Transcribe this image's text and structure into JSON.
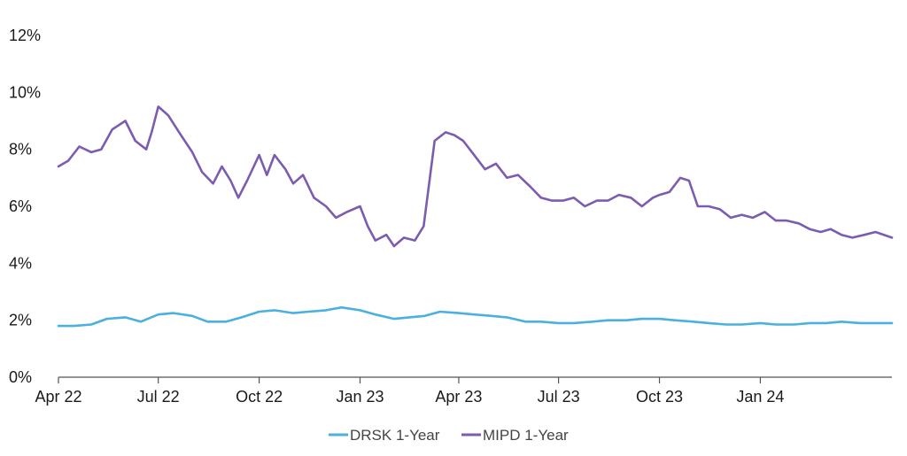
{
  "chart_data": {
    "type": "line",
    "title": "",
    "xlabel": "",
    "ylabel": "",
    "ylim": [
      0,
      12
    ],
    "y_ticks": [
      0,
      2,
      4,
      6,
      8,
      10,
      12
    ],
    "y_tick_labels": [
      "0%",
      "2%",
      "4%",
      "6%",
      "8%",
      "10%",
      "12%"
    ],
    "x_ticks": [
      "2022-04-01",
      "2022-07-01",
      "2022-10-01",
      "2023-01-01",
      "2023-04-01",
      "2023-07-01",
      "2023-10-01",
      "2024-01-01"
    ],
    "x_tick_labels": [
      "Apr 22",
      "Jul 22",
      "Oct 22",
      "Jan 23",
      "Apr 23",
      "Jul 23",
      "Oct 23",
      "Jan 24"
    ],
    "x_range": [
      "2022-04-01",
      "2024-04-30"
    ],
    "grid": false,
    "legend_position": "bottom-center",
    "series": [
      {
        "name": "DRSK 1-Year",
        "color": "#4ab0de",
        "points": [
          [
            "2022-04-01",
            1.8
          ],
          [
            "2022-04-15",
            1.8
          ],
          [
            "2022-05-01",
            1.85
          ],
          [
            "2022-05-15",
            2.05
          ],
          [
            "2022-06-01",
            2.1
          ],
          [
            "2022-06-15",
            1.95
          ],
          [
            "2022-07-01",
            2.2
          ],
          [
            "2022-07-15",
            2.25
          ],
          [
            "2022-08-01",
            2.15
          ],
          [
            "2022-08-15",
            1.95
          ],
          [
            "2022-09-01",
            1.95
          ],
          [
            "2022-09-15",
            2.1
          ],
          [
            "2022-10-01",
            2.3
          ],
          [
            "2022-10-15",
            2.35
          ],
          [
            "2022-11-01",
            2.25
          ],
          [
            "2022-11-15",
            2.3
          ],
          [
            "2022-12-01",
            2.35
          ],
          [
            "2022-12-15",
            2.45
          ],
          [
            "2023-01-01",
            2.35
          ],
          [
            "2023-01-15",
            2.2
          ],
          [
            "2023-02-01",
            2.05
          ],
          [
            "2023-02-15",
            2.1
          ],
          [
            "2023-03-01",
            2.15
          ],
          [
            "2023-03-15",
            2.3
          ],
          [
            "2023-04-01",
            2.25
          ],
          [
            "2023-04-15",
            2.2
          ],
          [
            "2023-05-01",
            2.15
          ],
          [
            "2023-05-15",
            2.1
          ],
          [
            "2023-06-01",
            1.95
          ],
          [
            "2023-06-15",
            1.95
          ],
          [
            "2023-07-01",
            1.9
          ],
          [
            "2023-07-15",
            1.9
          ],
          [
            "2023-08-01",
            1.95
          ],
          [
            "2023-08-15",
            2.0
          ],
          [
            "2023-09-01",
            2.0
          ],
          [
            "2023-09-15",
            2.05
          ],
          [
            "2023-10-01",
            2.05
          ],
          [
            "2023-10-15",
            2.0
          ],
          [
            "2023-11-01",
            1.95
          ],
          [
            "2023-11-15",
            1.9
          ],
          [
            "2023-12-01",
            1.85
          ],
          [
            "2023-12-15",
            1.85
          ],
          [
            "2024-01-01",
            1.9
          ],
          [
            "2024-01-15",
            1.85
          ],
          [
            "2024-02-01",
            1.85
          ],
          [
            "2024-02-15",
            1.9
          ],
          [
            "2024-03-01",
            1.9
          ],
          [
            "2024-03-15",
            1.95
          ],
          [
            "2024-04-01",
            1.9
          ],
          [
            "2024-04-30",
            1.9
          ]
        ]
      },
      {
        "name": "MIPD 1-Year",
        "color": "#7c5cb0",
        "points": [
          [
            "2022-04-01",
            7.4
          ],
          [
            "2022-04-10",
            7.6
          ],
          [
            "2022-04-20",
            8.1
          ],
          [
            "2022-05-01",
            7.9
          ],
          [
            "2022-05-10",
            8.0
          ],
          [
            "2022-05-20",
            8.7
          ],
          [
            "2022-06-01",
            9.0
          ],
          [
            "2022-06-10",
            8.3
          ],
          [
            "2022-06-20",
            8.0
          ],
          [
            "2022-06-25",
            8.6
          ],
          [
            "2022-07-01",
            9.5
          ],
          [
            "2022-07-10",
            9.2
          ],
          [
            "2022-07-20",
            8.6
          ],
          [
            "2022-08-01",
            7.9
          ],
          [
            "2022-08-10",
            7.2
          ],
          [
            "2022-08-20",
            6.8
          ],
          [
            "2022-08-28",
            7.4
          ],
          [
            "2022-09-05",
            6.9
          ],
          [
            "2022-09-12",
            6.3
          ],
          [
            "2022-09-20",
            6.9
          ],
          [
            "2022-10-01",
            7.8
          ],
          [
            "2022-10-08",
            7.1
          ],
          [
            "2022-10-15",
            7.8
          ],
          [
            "2022-10-25",
            7.3
          ],
          [
            "2022-11-01",
            6.8
          ],
          [
            "2022-11-10",
            7.1
          ],
          [
            "2022-11-20",
            6.3
          ],
          [
            "2022-12-01",
            6.0
          ],
          [
            "2022-12-10",
            5.6
          ],
          [
            "2022-12-20",
            5.8
          ],
          [
            "2023-01-01",
            6.0
          ],
          [
            "2023-01-08",
            5.3
          ],
          [
            "2023-01-15",
            4.8
          ],
          [
            "2023-01-25",
            5.0
          ],
          [
            "2023-02-01",
            4.6
          ],
          [
            "2023-02-10",
            4.9
          ],
          [
            "2023-02-20",
            4.8
          ],
          [
            "2023-02-28",
            5.3
          ],
          [
            "2023-03-10",
            8.3
          ],
          [
            "2023-03-20",
            8.6
          ],
          [
            "2023-03-28",
            8.5
          ],
          [
            "2023-04-05",
            8.3
          ],
          [
            "2023-04-15",
            7.8
          ],
          [
            "2023-04-25",
            7.3
          ],
          [
            "2023-05-05",
            7.5
          ],
          [
            "2023-05-15",
            7.0
          ],
          [
            "2023-05-25",
            7.1
          ],
          [
            "2023-06-05",
            6.7
          ],
          [
            "2023-06-15",
            6.3
          ],
          [
            "2023-06-25",
            6.2
          ],
          [
            "2023-07-05",
            6.2
          ],
          [
            "2023-07-15",
            6.3
          ],
          [
            "2023-07-25",
            6.0
          ],
          [
            "2023-08-05",
            6.2
          ],
          [
            "2023-08-15",
            6.2
          ],
          [
            "2023-08-25",
            6.4
          ],
          [
            "2023-09-05",
            6.3
          ],
          [
            "2023-09-15",
            6.0
          ],
          [
            "2023-09-25",
            6.3
          ],
          [
            "2023-10-01",
            6.4
          ],
          [
            "2023-10-10",
            6.5
          ],
          [
            "2023-10-20",
            7.0
          ],
          [
            "2023-10-28",
            6.9
          ],
          [
            "2023-11-05",
            6.0
          ],
          [
            "2023-11-15",
            6.0
          ],
          [
            "2023-11-25",
            5.9
          ],
          [
            "2023-12-05",
            5.6
          ],
          [
            "2023-12-15",
            5.7
          ],
          [
            "2023-12-25",
            5.6
          ],
          [
            "2024-01-05",
            5.8
          ],
          [
            "2024-01-15",
            5.5
          ],
          [
            "2024-01-25",
            5.5
          ],
          [
            "2024-02-05",
            5.4
          ],
          [
            "2024-02-15",
            5.2
          ],
          [
            "2024-02-25",
            5.1
          ],
          [
            "2024-03-05",
            5.2
          ],
          [
            "2024-03-15",
            5.0
          ],
          [
            "2024-03-25",
            4.9
          ],
          [
            "2024-04-05",
            5.0
          ],
          [
            "2024-04-15",
            5.1
          ],
          [
            "2024-04-30",
            4.9
          ]
        ]
      }
    ]
  }
}
